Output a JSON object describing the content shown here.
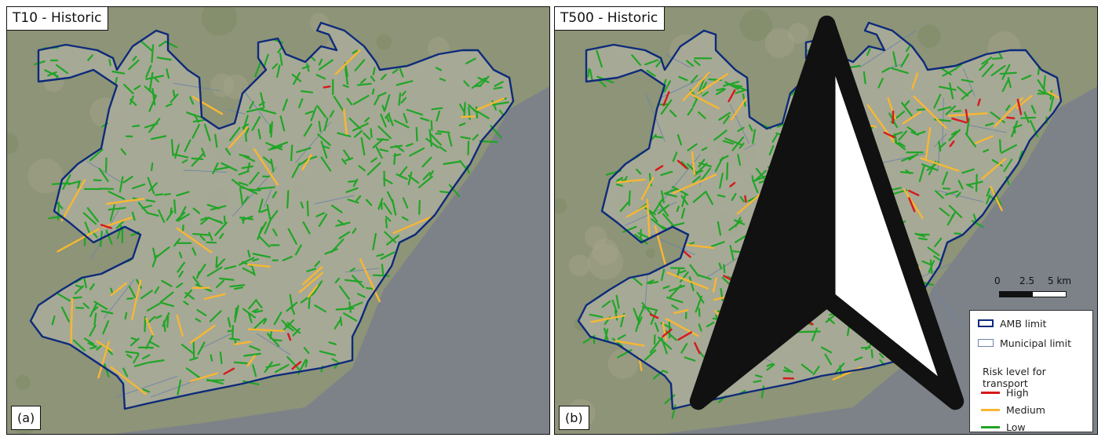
{
  "panels": [
    {
      "id": "a",
      "title": "T10 - Historic",
      "letter": "(a)"
    },
    {
      "id": "b",
      "title": "T500 - Historic",
      "letter": "(b)"
    }
  ],
  "scale": {
    "ticks": [
      "0",
      "2.5",
      "5 km"
    ]
  },
  "north_arrow": {
    "icon": "north-arrow-icon"
  },
  "legend": {
    "amb_limit": "AMB limit",
    "municipal_limit": "Municipal limit",
    "risk_heading": "Risk level for transport",
    "high": "High",
    "medium": "Medium",
    "low": "Low"
  },
  "colors": {
    "high": "#d7191c",
    "medium": "#f7b733",
    "low": "#1fa526",
    "amb_limit": "#0d2a7a",
    "municipal_limit": "#6f84a8",
    "sea": "#7d8289",
    "land": "#a9ab98"
  }
}
